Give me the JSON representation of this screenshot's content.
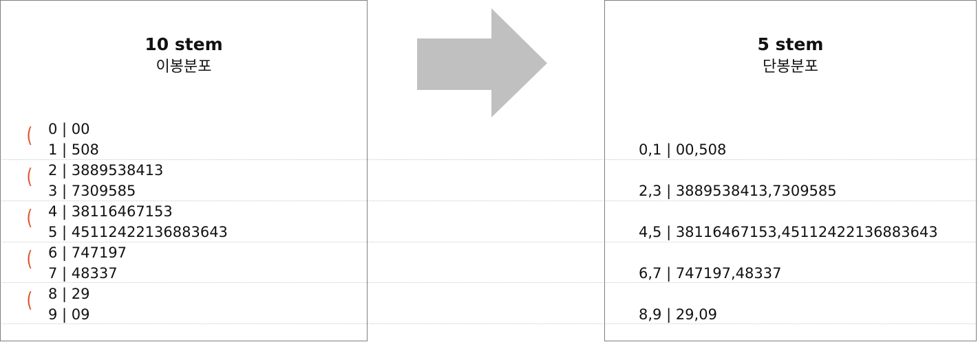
{
  "left": {
    "title": "10 stem",
    "subtitle": "이봉분포",
    "rows": [
      "0 | 00",
      "1 | 508",
      "2 | 3889538413",
      "3 | 7309585",
      "4 | 38116467153",
      "5 | 4511242213688364​3",
      "6 | 747197",
      "7 | 48337",
      "8 | 29",
      "9 | 09"
    ],
    "bracket": "("
  },
  "right": {
    "title": "5 stem",
    "subtitle": "단봉분포",
    "rows": [
      "0,1 | 00,508",
      "2,3 | 3889538413,7309585",
      "4,5 | 38116467153,4511242213688364​3",
      "6,7 | 747197,48337",
      "8,9 | 29,09"
    ]
  },
  "colors": {
    "arrow": "#c0c0c0",
    "bracket": "#e0512a",
    "border": "#7f7f7f",
    "gridline": "#c8c8c8"
  }
}
